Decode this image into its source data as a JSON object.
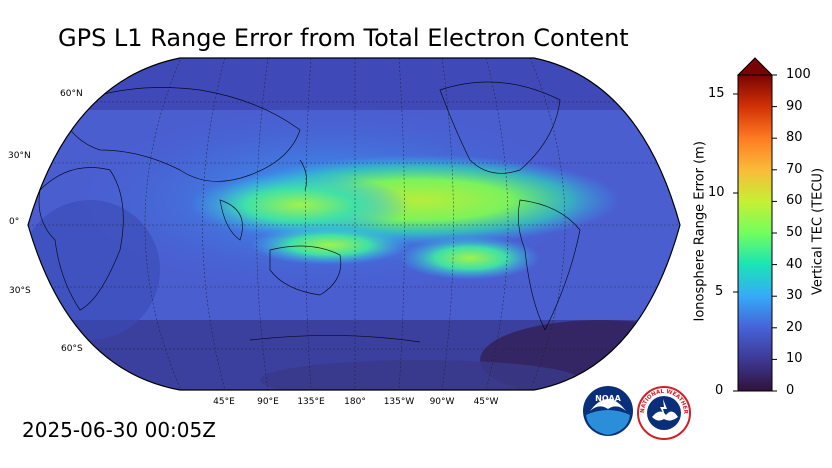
{
  "title": "GPS L1 Range Error from Total Electron Content",
  "timestamp": "2025-06-30 00:05Z",
  "map": {
    "projection": "robinson",
    "lat_labels": [
      "60°N",
      "30°N",
      "0°",
      "30°S",
      "60°S"
    ],
    "lon_labels": [
      "45°E",
      "90°E",
      "135°E",
      "180°",
      "135°W",
      "90°W",
      "45°W"
    ],
    "colormap": [
      "#30123b",
      "#3e3994",
      "#4662d7",
      "#36aaf9",
      "#1ae4b6",
      "#72fe5e",
      "#c7ef34",
      "#fabb3a",
      "#fe7b22",
      "#d23105",
      "#7a0403"
    ]
  },
  "colorbar": {
    "left_axis_label": "Ionosphere Range Error (m)",
    "left_ticks": [
      "0",
      "5",
      "10",
      "15"
    ],
    "right_axis_label": "Vertical TEC (TECU)",
    "right_ticks": [
      "0",
      "10",
      "20",
      "30",
      "40",
      "50",
      "60",
      "70",
      "80",
      "90",
      "100"
    ]
  },
  "logos": {
    "noaa": "NOAA",
    "nws": "NATIONAL WEATHER SERVICE"
  }
}
